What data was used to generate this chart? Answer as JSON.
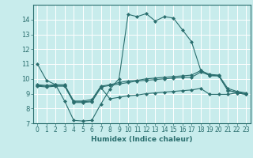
{
  "xlabel": "Humidex (Indice chaleur)",
  "ylabel": "",
  "xlim": [
    -0.5,
    23.5
  ],
  "ylim": [
    7,
    15
  ],
  "yticks": [
    7,
    8,
    9,
    10,
    11,
    12,
    13,
    14
  ],
  "xticks": [
    0,
    1,
    2,
    3,
    4,
    5,
    6,
    7,
    8,
    9,
    10,
    11,
    12,
    13,
    14,
    15,
    16,
    17,
    18,
    19,
    20,
    21,
    22,
    23
  ],
  "bg_color": "#c8ecec",
  "line_color": "#2a6e6e",
  "grid_color": "#b0d8d8",
  "series": [
    {
      "x": [
        0,
        1,
        2,
        3,
        4,
        5,
        6,
        7,
        8,
        9,
        10,
        11,
        12,
        13,
        14,
        15,
        16,
        17,
        18,
        19,
        20,
        21,
        22,
        23
      ],
      "y": [
        11.0,
        9.9,
        9.6,
        8.5,
        7.2,
        7.15,
        7.2,
        8.3,
        9.3,
        10.0,
        14.35,
        14.2,
        14.4,
        13.9,
        14.2,
        14.1,
        13.3,
        12.5,
        10.6,
        10.2,
        10.2,
        9.2,
        9.1,
        9.0
      ]
    },
    {
      "x": [
        0,
        1,
        2,
        3,
        4,
        5,
        6,
        7,
        8,
        9,
        10,
        11,
        12,
        13,
        14,
        15,
        16,
        17,
        18,
        19,
        20,
        21,
        22,
        23
      ],
      "y": [
        9.6,
        9.55,
        9.6,
        9.6,
        8.5,
        8.5,
        8.6,
        9.5,
        9.6,
        9.75,
        9.85,
        9.9,
        10.0,
        10.05,
        10.1,
        10.15,
        10.2,
        10.25,
        10.55,
        10.3,
        10.25,
        9.35,
        9.15,
        9.05
      ]
    },
    {
      "x": [
        0,
        1,
        2,
        3,
        4,
        5,
        6,
        7,
        8,
        9,
        10,
        11,
        12,
        13,
        14,
        15,
        16,
        17,
        18,
        19,
        20,
        21,
        22,
        23
      ],
      "y": [
        9.55,
        9.5,
        9.55,
        9.55,
        8.45,
        8.45,
        8.5,
        9.45,
        9.55,
        9.65,
        9.75,
        9.85,
        9.9,
        9.95,
        10.0,
        10.05,
        10.1,
        10.1,
        10.45,
        10.25,
        10.2,
        9.25,
        9.05,
        8.95
      ]
    },
    {
      "x": [
        0,
        1,
        2,
        3,
        4,
        5,
        6,
        7,
        8,
        9,
        10,
        11,
        12,
        13,
        14,
        15,
        16,
        17,
        18,
        19,
        20,
        21,
        22,
        23
      ],
      "y": [
        9.5,
        9.45,
        9.5,
        9.5,
        8.4,
        8.4,
        8.45,
        9.4,
        8.65,
        8.75,
        8.85,
        8.9,
        9.0,
        9.05,
        9.1,
        9.15,
        9.2,
        9.25,
        9.35,
        8.95,
        8.95,
        8.95,
        9.05,
        8.95
      ]
    }
  ]
}
